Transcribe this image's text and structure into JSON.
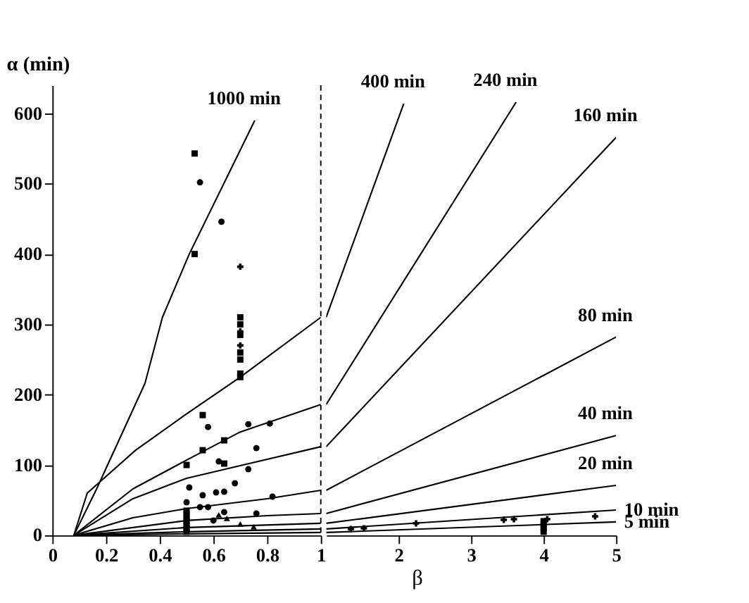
{
  "chart_data": [
    {
      "type": "line",
      "ylabel": "α (min)",
      "xlim": [
        0,
        1
      ],
      "xticks": [
        0,
        0.2,
        0.4,
        0.6,
        0.8,
        1
      ],
      "ylim": [
        0,
        640
      ],
      "yticks": [
        0,
        100,
        200,
        300,
        400,
        500,
        600
      ],
      "grid": false,
      "ref_lines": [
        {
          "axis": "x",
          "value": 1,
          "line_style": "dashed",
          "color": "#000000"
        }
      ],
      "series": [
        {
          "type": "line",
          "name": "1000 min",
          "color": "#000000",
          "x": [
            0.08,
            0.165,
            0.345,
            0.41,
            0.51,
            0.754
          ],
          "values": [
            0,
            66,
            216,
            310,
            400,
            590
          ]
        },
        {
          "type": "line",
          "color": "#000000",
          "x": [
            0.08,
            0.13,
            0.31,
            0.49,
            0.7,
            1
          ],
          "values": [
            0,
            60,
            121,
            170,
            225,
            310
          ]
        },
        {
          "type": "line",
          "color": "#000000",
          "x": [
            0.08,
            0.3,
            0.5,
            0.7,
            1
          ],
          "values": [
            0,
            66,
            107,
            147,
            186
          ]
        },
        {
          "type": "line",
          "color": "#000000",
          "x": [
            0.08,
            0.3,
            0.5,
            0.7,
            1
          ],
          "values": [
            0,
            52,
            81,
            99,
            126
          ]
        },
        {
          "type": "line",
          "color": "#000000",
          "x": [
            0.08,
            0.3,
            0.5,
            0.8,
            1
          ],
          "values": [
            0,
            25,
            38,
            52,
            64
          ]
        },
        {
          "type": "line",
          "color": "#000000",
          "x": [
            0.08,
            0.5,
            0.8,
            1
          ],
          "values": [
            0,
            21,
            28,
            31
          ]
        },
        {
          "type": "line",
          "color": "#000000",
          "x": [
            0.08,
            0.5,
            1
          ],
          "values": [
            0,
            11,
            17
          ]
        },
        {
          "type": "line",
          "color": "#000000",
          "x": [
            0.08,
            0.5,
            1
          ],
          "values": [
            0,
            5,
            9
          ]
        },
        {
          "type": "line",
          "color": "#000000",
          "x": [
            0.08,
            0.5,
            1
          ],
          "values": [
            0,
            2,
            4
          ]
        },
        {
          "type": "scatter",
          "marker": "square",
          "color": "#000000",
          "x": [
            0.53,
            0.53,
            0.56,
            0.56,
            0.64,
            0.64,
            0.5,
            0.7,
            0.7,
            0.7,
            0.7,
            0.7,
            0.7,
            0.7,
            0.5,
            0.5,
            0.5,
            0.5,
            0.5,
            0.5,
            0.5
          ],
          "values": [
            543,
            400,
            171,
            121,
            135,
            102,
            100,
            310,
            300,
            285,
            260,
            250,
            230,
            225,
            5,
            10,
            15,
            20,
            25,
            30,
            35
          ]
        },
        {
          "type": "scatter",
          "marker": "cross",
          "color": "#000000",
          "x": [
            0.7,
            0.7,
            0.7
          ],
          "values": [
            382,
            290,
            270
          ]
        },
        {
          "type": "scatter",
          "marker": "circle",
          "color": "#000000",
          "x": [
            0.55,
            0.63,
            0.58,
            0.81,
            0.76,
            0.73,
            0.68,
            0.64,
            0.5
          ],
          "values": [
            502,
            446,
            154,
            159,
            124,
            94,
            74,
            62,
            47
          ]
        },
        {
          "type": "scatter",
          "marker": "circle",
          "color": "#000000",
          "x": [
            0.73,
            0.62,
            0.51,
            0.82,
            0.56,
            0.61,
            0.55,
            0.58,
            0.64,
            0.76,
            0.6
          ],
          "values": [
            158,
            105,
            68,
            55,
            57,
            61,
            40,
            40,
            33,
            31,
            21
          ]
        },
        {
          "type": "scatter",
          "marker": "triangle",
          "color": "#000000",
          "x": [
            0.62,
            0.65,
            0.7,
            0.75
          ],
          "values": [
            29,
            24,
            16,
            12
          ]
        }
      ]
    },
    {
      "type": "line",
      "xlabel": "β",
      "xlim": [
        1,
        5
      ],
      "xticks": [
        2,
        3,
        4,
        5
      ],
      "ylim": [
        0,
        640
      ],
      "tick_labels": "x",
      "grid": false,
      "series": [
        {
          "type": "line",
          "name": "400 min",
          "color": "#000000",
          "x": [
            1,
            2.07
          ],
          "values": [
            310,
            614
          ]
        },
        {
          "type": "line",
          "name": "240 min",
          "color": "#000000",
          "x": [
            1,
            3.62
          ],
          "values": [
            186,
            616
          ]
        },
        {
          "type": "line",
          "name": "160 min",
          "color": "#000000",
          "x": [
            1,
            5
          ],
          "values": [
            126,
            566
          ]
        },
        {
          "type": "line",
          "name": "80 min",
          "color": "#000000",
          "x": [
            1,
            5
          ],
          "values": [
            64,
            282
          ]
        },
        {
          "type": "line",
          "name": "40 min",
          "color": "#000000",
          "x": [
            1,
            5
          ],
          "values": [
            31,
            142
          ]
        },
        {
          "type": "line",
          "name": "20 min",
          "color": "#000000",
          "x": [
            1,
            5
          ],
          "values": [
            17,
            71
          ]
        },
        {
          "type": "line",
          "name": "10 min",
          "color": "#000000",
          "x": [
            1,
            5
          ],
          "values": [
            9,
            36
          ]
        },
        {
          "type": "line",
          "name": "5 min",
          "color": "#000000",
          "x": [
            1,
            5
          ],
          "values": [
            4,
            19
          ]
        },
        {
          "type": "scatter",
          "marker": "cross",
          "color": "#000000",
          "x": [
            1.34,
            1.52,
            2.24,
            3.45,
            3.59,
            4.05,
            4.71
          ],
          "values": [
            9,
            10,
            17,
            22,
            23,
            23,
            27
          ]
        },
        {
          "type": "scatter",
          "marker": "square",
          "color": "#000000",
          "x": [
            4,
            4,
            4,
            4
          ],
          "values": [
            5,
            10,
            15,
            20
          ]
        }
      ]
    }
  ]
}
